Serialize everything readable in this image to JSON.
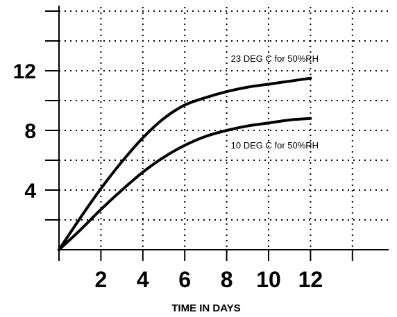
{
  "chart_data": {
    "type": "line",
    "title": "",
    "xlabel": "TIME IN DAYS",
    "ylabel": "",
    "xlim": [
      0,
      14
    ],
    "ylim": [
      0,
      16
    ],
    "grid": true,
    "x_ticks": [
      2,
      4,
      6,
      8,
      10,
      12
    ],
    "x_tick_labels": [
      "2",
      "4",
      "6",
      "8",
      "10",
      "12"
    ],
    "y_ticks": [
      4,
      8,
      12
    ],
    "y_tick_labels": [
      "4",
      "8",
      "12"
    ],
    "series": [
      {
        "name": "23 DEG C for 50%RH",
        "x": [
          0,
          1,
          2,
          3,
          4,
          5,
          6,
          7,
          8,
          9,
          10,
          11,
          12
        ],
        "y": [
          0,
          2.1,
          4.1,
          5.9,
          7.5,
          8.8,
          9.7,
          10.2,
          10.6,
          10.9,
          11.1,
          11.3,
          11.5
        ]
      },
      {
        "name": "10 DEG C for 50%RH",
        "x": [
          0,
          1,
          2,
          3,
          4,
          5,
          6,
          7,
          8,
          9,
          10,
          11,
          12
        ],
        "y": [
          0,
          1.3,
          2.7,
          4.0,
          5.2,
          6.2,
          7.0,
          7.6,
          8.0,
          8.3,
          8.5,
          8.7,
          8.8
        ]
      }
    ],
    "annotations": [
      {
        "text": "23 DEG C for 50%RH",
        "x": 8.2,
        "y": 12.6
      },
      {
        "text": "10 DEG C for 50%RH",
        "x": 8.2,
        "y": 6.8
      }
    ]
  }
}
